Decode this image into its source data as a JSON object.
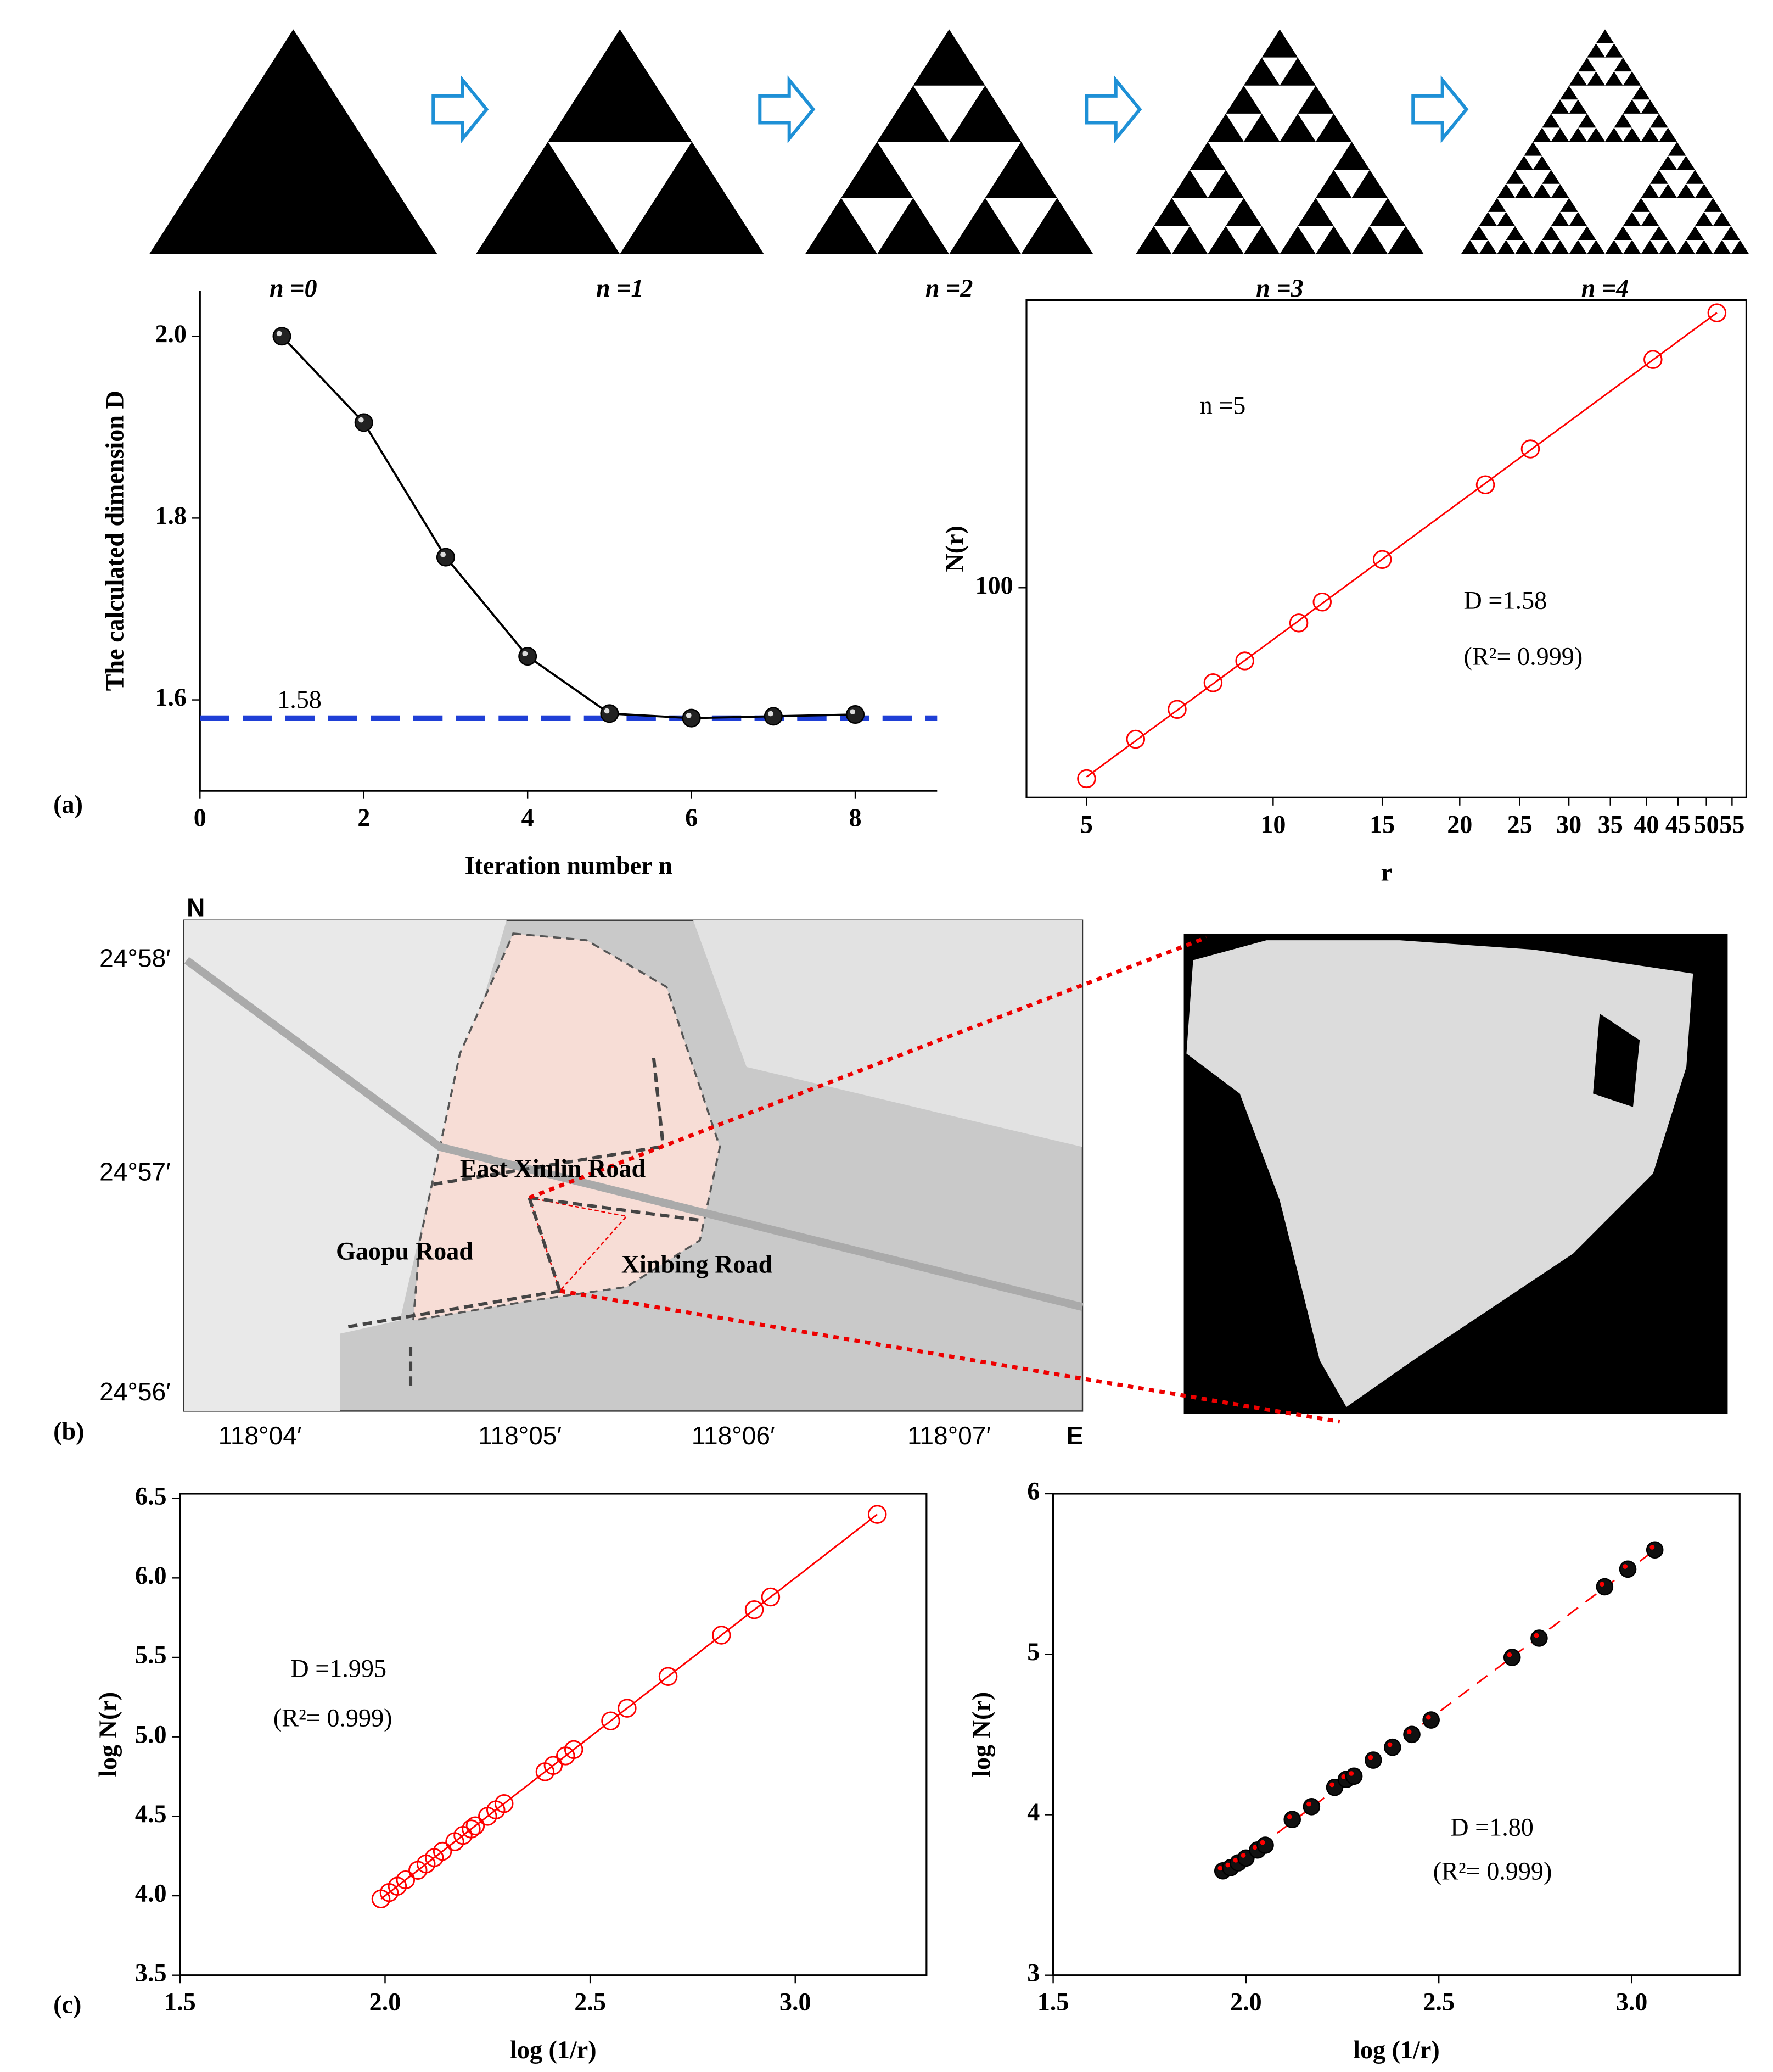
{
  "panel_labels": [
    "(a)",
    "(b)",
    "(c)"
  ],
  "sierpinski": {
    "labels": [
      "n =0",
      "n =1",
      "n =2",
      "n =3",
      "n =4"
    ]
  },
  "map": {
    "north": "N",
    "east": "E",
    "lat_labels": [
      "24°58′",
      "24°57′",
      "24°56′"
    ],
    "lon_labels": [
      "118°04′",
      "118°05′",
      "118°06′",
      "118°07′"
    ],
    "roads": [
      "East Xinlin Road",
      "Gaopu Road",
      "Xinbing Road"
    ]
  },
  "chart_data": [
    {
      "type": "line",
      "x_label": "Iteration number n",
      "y_label": "The calculated dimension D",
      "x": [
        1,
        2,
        3,
        4,
        5,
        6,
        7,
        8
      ],
      "series": [
        {
          "color": "#000000",
          "values": [
            2.0,
            1.905,
            1.757,
            1.648,
            1.585,
            1.58,
            1.582,
            1.584
          ]
        }
      ],
      "xlim": [
        0,
        9
      ],
      "xticks": [
        0,
        2,
        4,
        6,
        8
      ],
      "ylim": [
        1.5,
        2.05
      ],
      "yticks": [
        1.6,
        1.8,
        {
          "value": 2,
          "label": "2.0"
        }
      ],
      "reference_line": {
        "value": 1.58,
        "label": "1.58",
        "color": "#1f3fd6"
      }
    },
    {
      "type": "scatter",
      "x_label": "r",
      "y_label": "N(r)",
      "annotations": [
        "n =5",
        "D =1.58",
        "(R²= 0.999)"
      ],
      "x": [
        5,
        6,
        7,
        8,
        9,
        11,
        12,
        15,
        22,
        26,
        41,
        52
      ],
      "values": [
        21,
        29,
        37,
        46,
        55,
        75,
        89,
        126,
        232,
        311,
        646,
        946
      ],
      "color": "#ff0000",
      "marker": "open",
      "fit_line": "solid",
      "xlog": true,
      "ylog": true,
      "xlim": [
        4,
        58
      ],
      "xticks": [
        5,
        10,
        15,
        20,
        25,
        30,
        35,
        40,
        45,
        50,
        55
      ],
      "ylim": [
        18,
        1050
      ],
      "yticks": [
        100
      ]
    },
    {
      "type": "scatter",
      "x_label": "log (1/r)",
      "y_label": "log N(r)",
      "annotations": [
        "D =1.995",
        "(R²= 0.999)"
      ],
      "x": [
        1.99,
        2.01,
        2.03,
        2.05,
        2.08,
        2.1,
        2.12,
        2.14,
        2.17,
        2.19,
        2.21,
        2.22,
        2.25,
        2.27,
        2.29,
        2.39,
        2.41,
        2.44,
        2.46,
        2.55,
        2.59,
        2.69,
        2.82,
        2.9,
        2.94,
        3.2
      ],
      "values": [
        3.98,
        4.02,
        4.06,
        4.1,
        4.16,
        4.2,
        4.24,
        4.28,
        4.34,
        4.38,
        4.42,
        4.44,
        4.5,
        4.54,
        4.58,
        4.78,
        4.82,
        4.88,
        4.92,
        5.1,
        5.18,
        5.38,
        5.64,
        5.8,
        5.88,
        6.4
      ],
      "color": "#ff0000",
      "marker": "open",
      "fit_line": "solid",
      "xlim": [
        1.5,
        3.32
      ],
      "xticks": [
        1.5,
        {
          "value": 2,
          "label": "2.0"
        },
        2.5,
        {
          "value": 3,
          "label": "3.0"
        }
      ],
      "ylim": [
        3.5,
        6.53
      ],
      "yticks": [
        3.5,
        {
          "value": 4,
          "label": "4.0"
        },
        4.5,
        {
          "value": 5,
          "label": "5.0"
        },
        5.5,
        {
          "value": 6,
          "label": "6.0"
        },
        6.5
      ]
    },
    {
      "type": "scatter",
      "x_label": "log (1/r)",
      "y_label": "log N(r)",
      "annotations": [
        "D =1.80",
        "(R²= 0.999)"
      ],
      "x": [
        1.94,
        1.96,
        1.98,
        2.0,
        2.03,
        2.05,
        2.12,
        2.17,
        2.23,
        2.26,
        2.28,
        2.33,
        2.38,
        2.43,
        2.48,
        2.69,
        2.76,
        2.93,
        2.99,
        3.06
      ],
      "values": [
        3.65,
        3.67,
        3.7,
        3.73,
        3.78,
        3.81,
        3.97,
        4.05,
        4.17,
        4.22,
        4.24,
        4.34,
        4.42,
        4.5,
        4.59,
        4.98,
        5.1,
        5.42,
        5.53,
        5.65
      ],
      "color": "#ff0000",
      "marker": "filled",
      "fit_line": "dashed",
      "xlim": [
        1.5,
        3.28
      ],
      "xticks": [
        1.5,
        {
          "value": 2,
          "label": "2.0"
        },
        2.5,
        {
          "value": 3,
          "label": "3.0"
        }
      ],
      "ylim": [
        3,
        6
      ],
      "yticks": [
        3,
        4,
        5,
        6
      ]
    }
  ]
}
